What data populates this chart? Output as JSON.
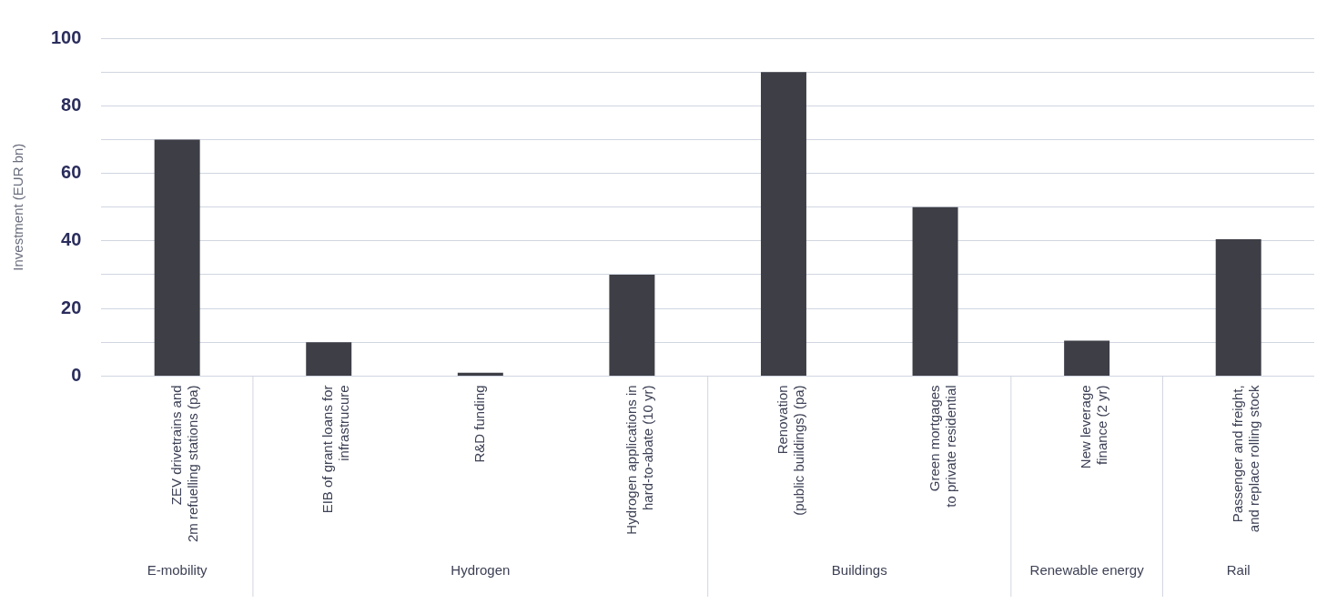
{
  "chart_data": {
    "type": "bar",
    "ylabel": "Investment (EUR bn)",
    "categories": [
      "ZEV drivetrains and\n2m refuelling stations (pa)",
      "EIB of grant loans for\ninfrastrucure",
      "R&D funding",
      "Hydrogen applications in\nhard-to-abate (10 yr)",
      "Renovation\n(public buildings) (pa)",
      "Green mortgages\nto private residential",
      "New leverage\nfinance (2 yr)",
      "Passenger and freight,\nand replace rolling stock"
    ],
    "values": [
      70,
      10,
      1,
      30,
      90,
      50,
      10.5,
      40.5
    ],
    "color": "#3d3e46",
    "ylim": [
      0,
      100
    ],
    "yticks": [
      0,
      {
        "value": 10,
        "label": null
      },
      20,
      {
        "value": 30,
        "label": null
      },
      40,
      {
        "value": 50,
        "label": null
      },
      60,
      {
        "value": 70,
        "label": null
      },
      80,
      {
        "value": 90,
        "label": null
      },
      100
    ],
    "grid": "y",
    "legend": false,
    "annotations": [
      "E-mobility",
      "Hydrogen",
      "Buildings",
      "Renewable energy",
      "Rail"
    ]
  }
}
